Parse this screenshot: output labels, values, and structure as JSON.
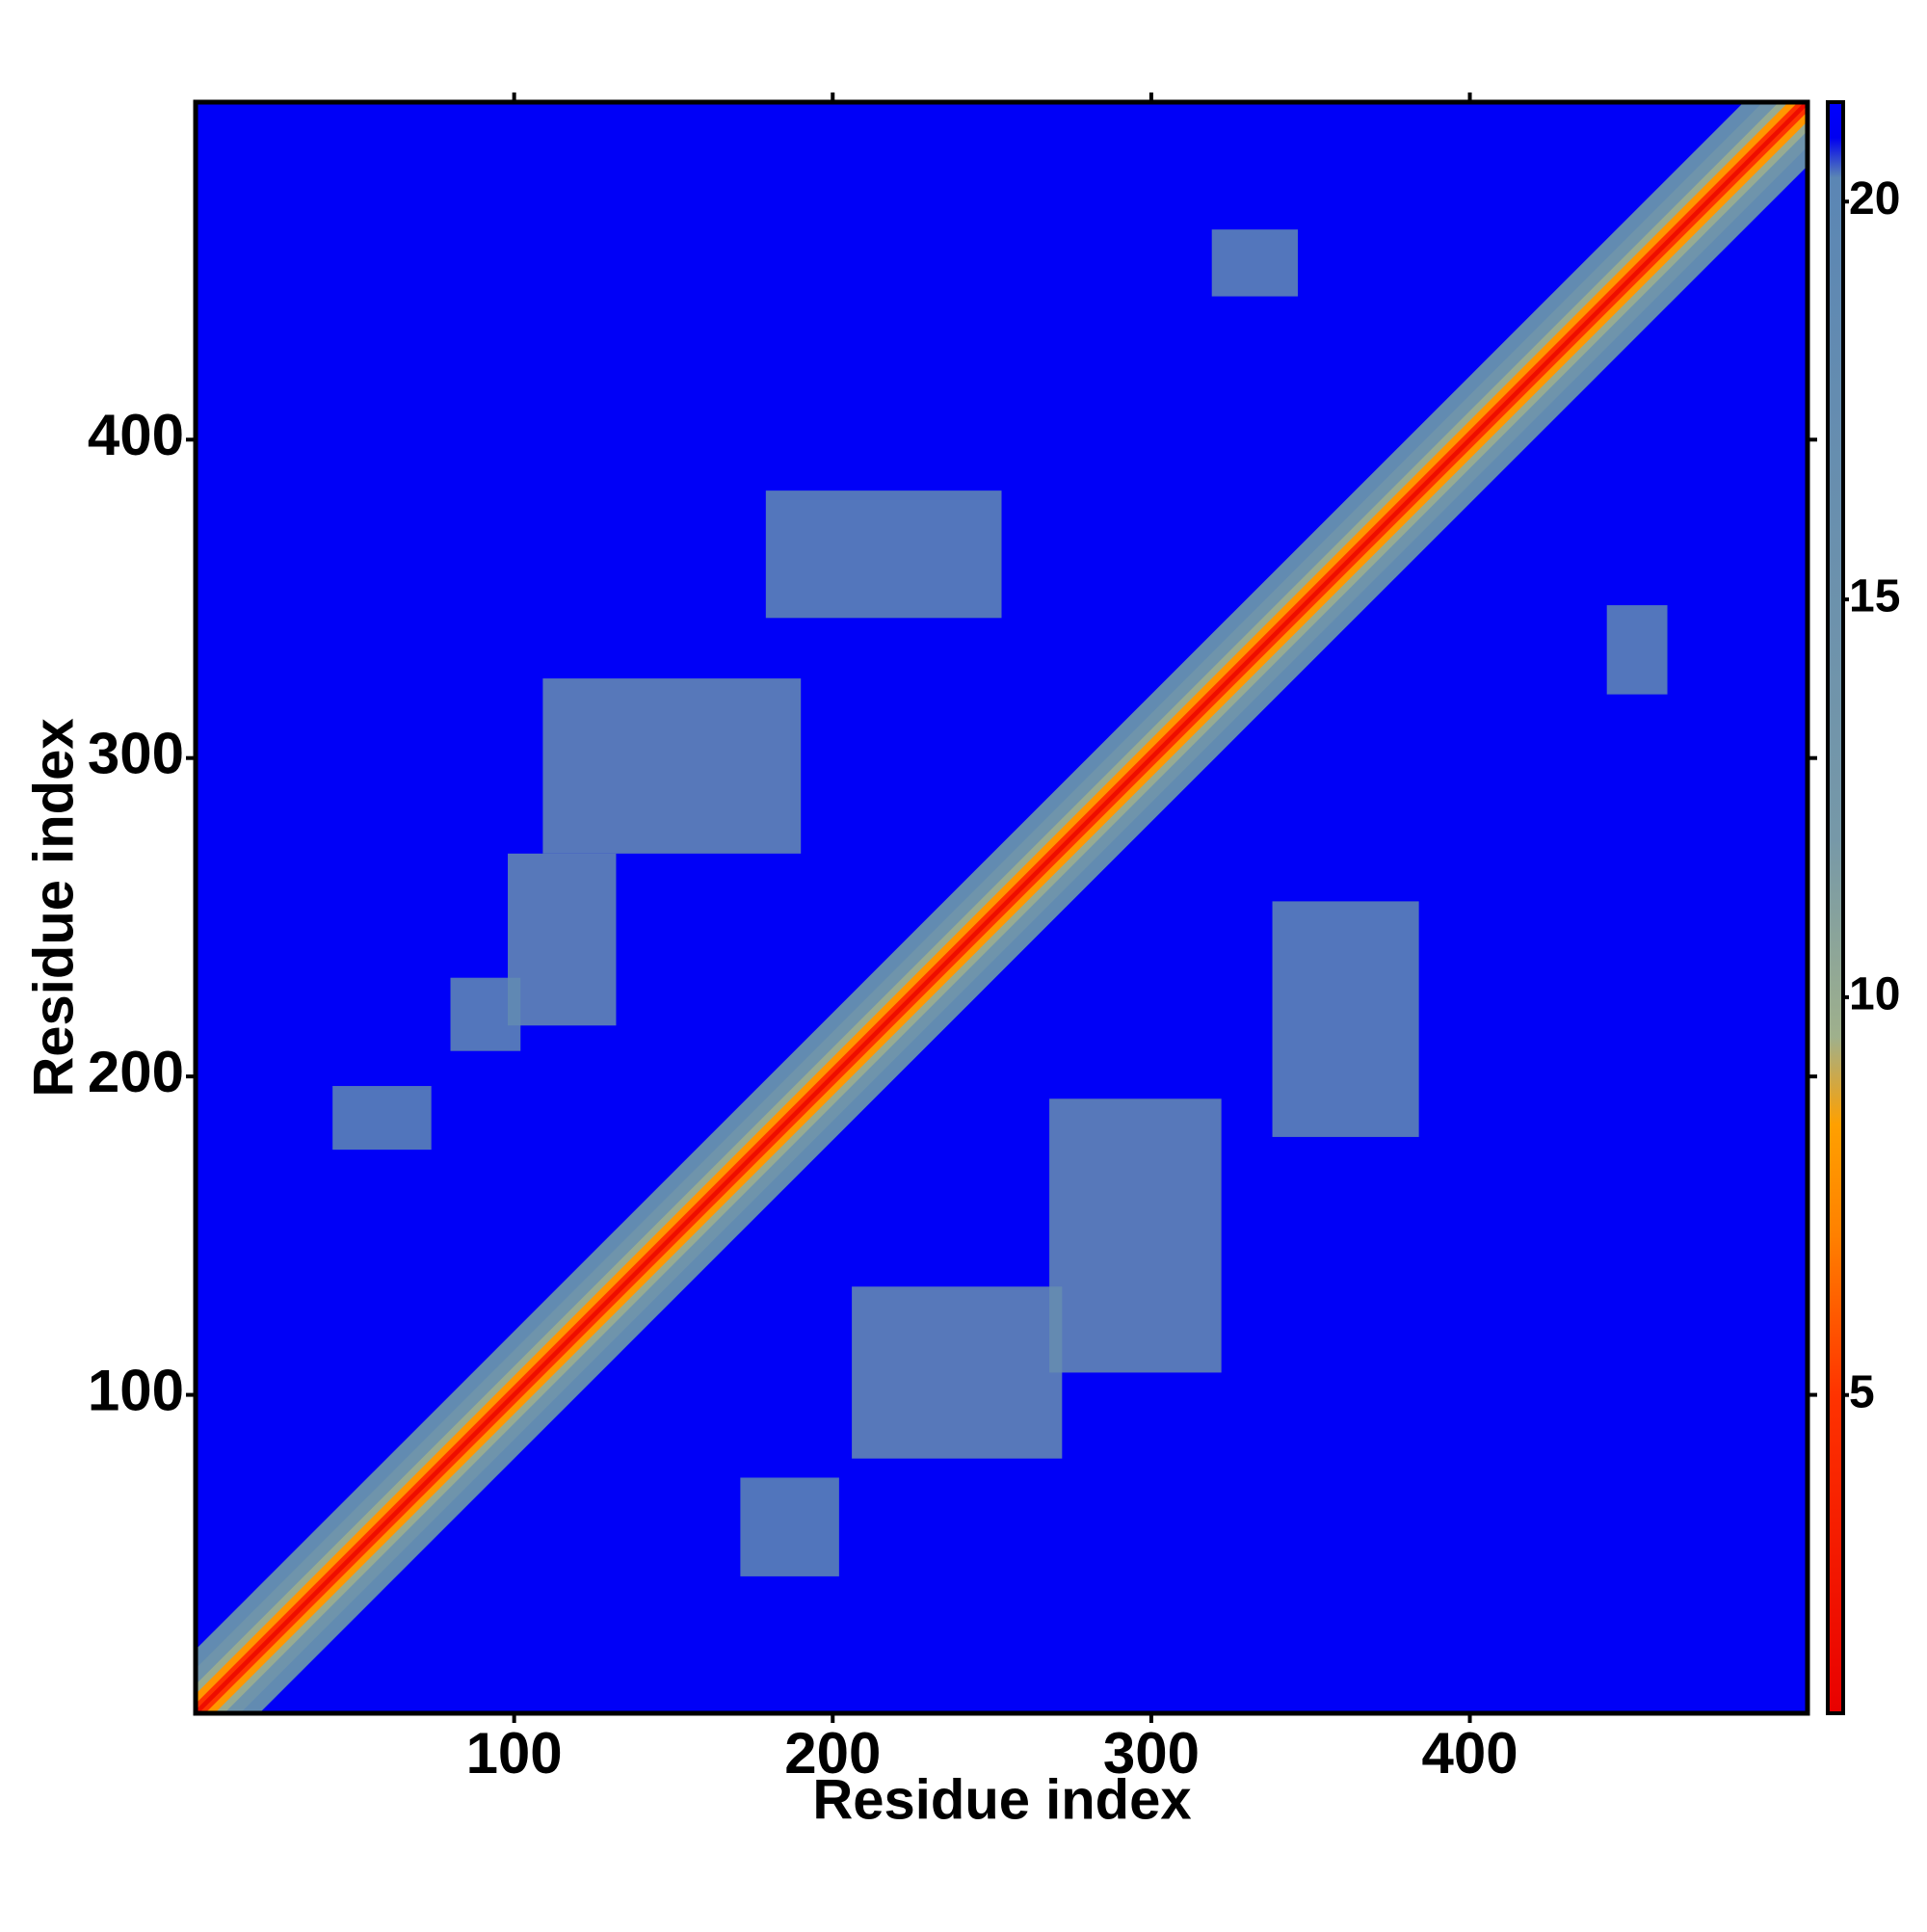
{
  "chart_data": {
    "type": "heatmap",
    "xlabel": "Residue index",
    "ylabel": "Residue index",
    "xlim": [
      0,
      506
    ],
    "ylim": [
      0,
      506
    ],
    "xticks": [
      100,
      200,
      300,
      400
    ],
    "yticks": [
      100,
      200,
      300,
      400
    ],
    "background": 21,
    "diagonal": {
      "offsets": [
        20,
        14,
        9,
        6,
        3,
        1
      ],
      "values": [
        18,
        14,
        10,
        8,
        5,
        2
      ]
    },
    "patches": [
      {
        "x": [
          109,
          190
        ],
        "y": [
          270,
          325
        ],
        "value": 17
      },
      {
        "x": [
          98,
          132
        ],
        "y": [
          216,
          270
        ],
        "value": 17
      },
      {
        "x": [
          80,
          102
        ],
        "y": [
          208,
          231
        ],
        "value": 18
      },
      {
        "x": [
          179,
          253
        ],
        "y": [
          344,
          384
        ],
        "value": 18
      },
      {
        "x": [
          206,
          272
        ],
        "y": [
          80,
          134
        ],
        "value": 17
      },
      {
        "x": [
          268,
          322
        ],
        "y": [
          107,
          193
        ],
        "value": 17
      },
      {
        "x": [
          338,
          384
        ],
        "y": [
          181,
          255
        ],
        "value": 18
      },
      {
        "x": [
          319,
          346
        ],
        "y": [
          445,
          466
        ],
        "value": 18
      },
      {
        "x": [
          443,
          462
        ],
        "y": [
          320,
          348
        ],
        "value": 18
      },
      {
        "x": [
          171,
          202
        ],
        "y": [
          43,
          74
        ],
        "value": 19
      },
      {
        "x": [
          43,
          74
        ],
        "y": [
          177,
          197
        ],
        "value": 19
      }
    ],
    "clim": [
      1,
      21.25
    ],
    "cticks": [
      5,
      10,
      15,
      20
    ],
    "colormap": [
      {
        "value": 1,
        "color": "#e80000"
      },
      {
        "value": 5,
        "color": "#ff3300"
      },
      {
        "value": 7,
        "color": "#ff8000"
      },
      {
        "value": 8.4,
        "color": "#ffa000"
      },
      {
        "value": 9.5,
        "color": "#9fb08c"
      },
      {
        "value": 12,
        "color": "#7698a8"
      },
      {
        "value": 20.3,
        "color": "#5b86b4"
      },
      {
        "value": 20.8,
        "color": "#0000f0"
      },
      {
        "value": 21.25,
        "color": "#0000ff"
      }
    ]
  }
}
